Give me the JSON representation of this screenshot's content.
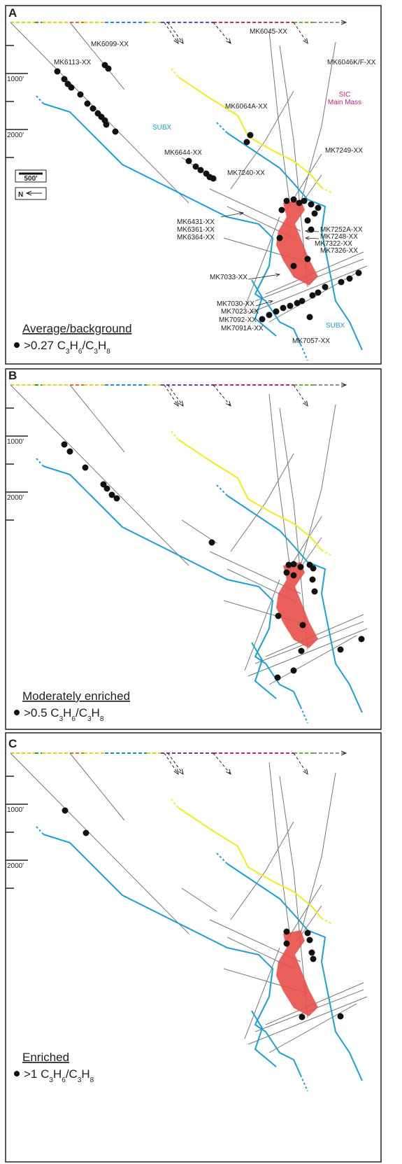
{
  "panels": [
    {
      "letter": "A",
      "legend": {
        "title": "Average/background",
        "threshold": ">0.27"
      }
    },
    {
      "letter": "B",
      "legend": {
        "title": "Moderately enriched",
        "threshold": ">0.5"
      }
    },
    {
      "letter": "C",
      "legend": {
        "title": "Enriched",
        "threshold": ">1"
      }
    }
  ],
  "formula": [
    "C",
    "3",
    "H",
    "6",
    "/C",
    "3",
    "H",
    "8"
  ],
  "depth_labels": [
    "1000'",
    "2000'"
  ],
  "scale_label": "500'",
  "north_label": "N",
  "units": {
    "subx": "SUBX",
    "sic": [
      "SIC",
      "Main Mass"
    ]
  },
  "drillholes": [
    "MK6099-XX",
    "MK6113-XX",
    "MK6045-XX",
    "MK6046K/F-XX",
    "MK6064A-XX",
    "MK7249-XX",
    "MK6644-XX",
    "MK7240-XX",
    "MK6431-XX",
    "MK6361-XX",
    "MK6364-XX",
    "MK7252A-XX",
    "MK7248-XX",
    "MK7322-XX",
    "MK7326-XX",
    "MK7033-XX",
    "MK7030-XX",
    "MK7023-XX",
    "MK7092-XX",
    "MK7091A-XX",
    "MK7057-XX"
  ]
}
